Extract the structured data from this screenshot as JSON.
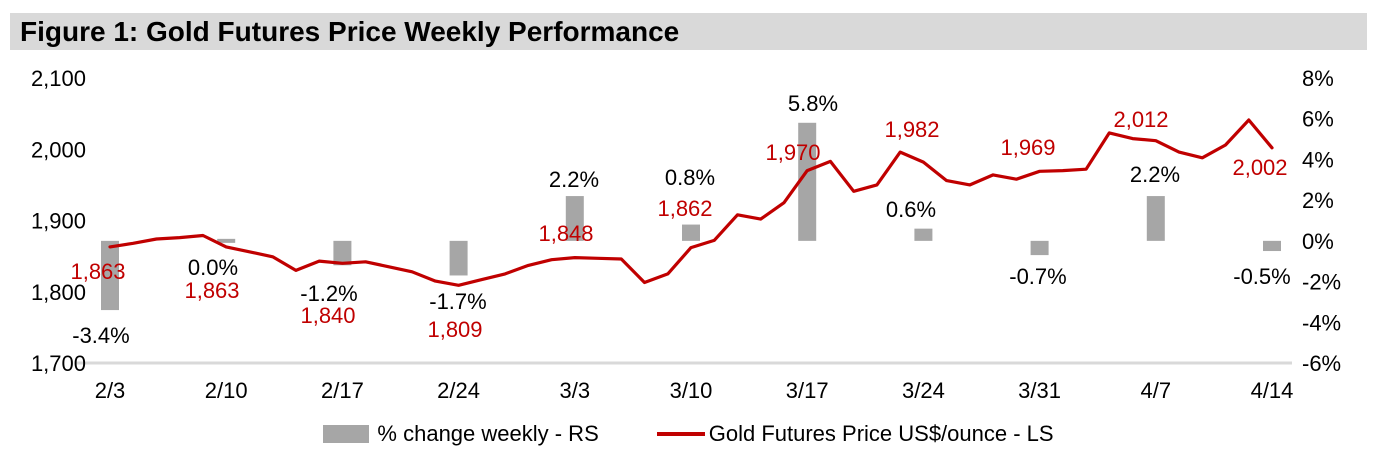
{
  "figure": {
    "title": "Figure 1: Gold Futures Price Weekly Performance"
  },
  "chart_data": {
    "type": "combo-bar-line",
    "title": "Figure 1: Gold Futures Price Weekly Performance",
    "categories": [
      "2/3",
      "2/10",
      "2/17",
      "2/24",
      "3/3",
      "3/10",
      "3/17",
      "3/24",
      "3/31",
      "4/7",
      "4/14"
    ],
    "series": [
      {
        "name": "% change weekly - RS",
        "type": "bar",
        "axis": "right",
        "color": "#a6a6a6",
        "values": [
          -3.4,
          0.0,
          -1.2,
          -1.7,
          2.2,
          0.8,
          5.8,
          0.6,
          -0.7,
          2.2,
          -0.5
        ],
        "point_labels": [
          "-3.4%",
          "0.0%",
          "-1.2%",
          "-1.7%",
          "2.2%",
          "0.8%",
          "5.8%",
          "0.6%",
          "-0.7%",
          "2.2%",
          "-0.5%"
        ]
      },
      {
        "name": "Gold Futures Price US$/ounce - LS",
        "type": "line",
        "axis": "left",
        "color": "#c00000",
        "values": [
          1863,
          1863,
          1840,
          1809,
          1848,
          1862,
          1970,
          1982,
          1969,
          2012,
          2002
        ],
        "point_labels": [
          "1,863",
          "1,863",
          "1,840",
          "1,809",
          "1,848",
          "1,862",
          "1,970",
          "1,982",
          "1,969",
          "2,012",
          "2,002"
        ],
        "daily_values": [
          1863,
          1868,
          1874,
          1876,
          1879,
          1863,
          1856,
          1849,
          1830,
          1843,
          1840,
          1842,
          1835,
          1828,
          1815,
          1809,
          1817,
          1825,
          1837,
          1845,
          1848,
          1847,
          1846,
          1813,
          1825,
          1862,
          1872,
          1908,
          1902,
          1925,
          1970,
          1983,
          1941,
          1950,
          1996,
          1982,
          1956,
          1950,
          1964,
          1958,
          1969,
          1970,
          1972,
          2023,
          2015,
          2012,
          1996,
          1988,
          2006,
          2041,
          2002
        ]
      }
    ],
    "left_axis": {
      "side": "left",
      "min": 1700,
      "max": 2100,
      "tick_values": [
        2100,
        2000,
        1900,
        1800,
        1700
      ],
      "tick_labels": [
        "2,100",
        "2,000",
        "1,900",
        "1,800",
        "1,700"
      ]
    },
    "right_axis": {
      "side": "right",
      "min": -6,
      "max": 8,
      "tick_values": [
        8,
        6,
        4,
        2,
        0,
        -2,
        -4,
        -6
      ],
      "tick_labels": [
        "8%",
        "6%",
        "4%",
        "2%",
        "0%",
        "-2%",
        "-4%",
        "-6%"
      ]
    },
    "legend": {
      "position": "bottom"
    },
    "grid": "off",
    "colors": {
      "bar": "#a6a6a6",
      "line": "#c00000",
      "title_bar_bg": "#d9d9d9",
      "axis_line": "#d9d9d9",
      "text": "#000000"
    }
  }
}
